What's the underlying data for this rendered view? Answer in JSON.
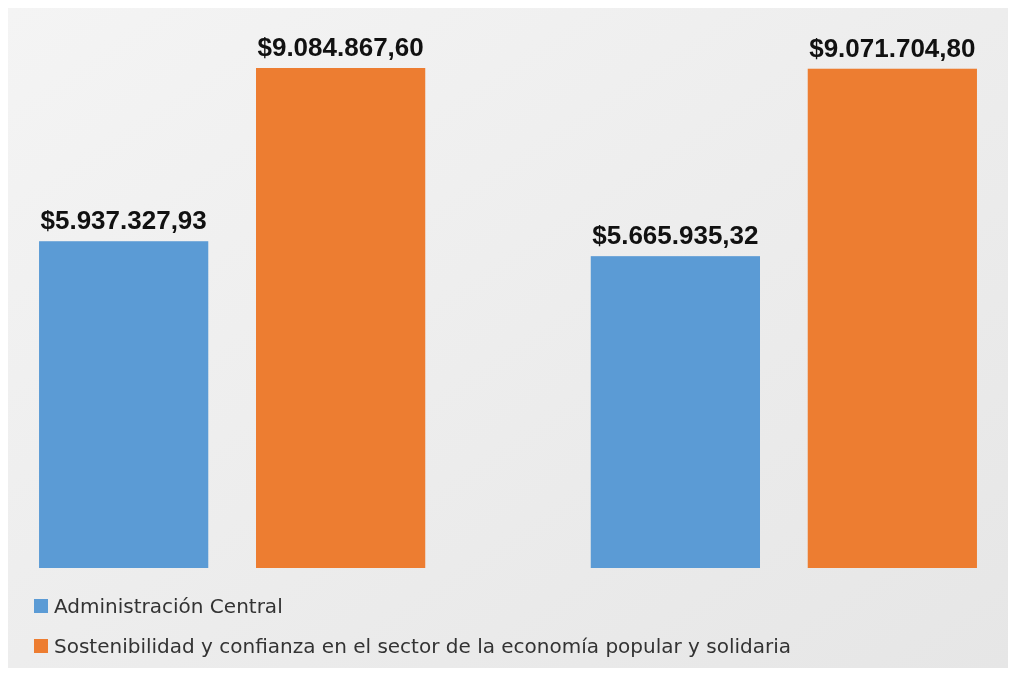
{
  "chart_data": {
    "type": "bar",
    "categories": [
      null,
      null
    ],
    "series": [
      {
        "name": "Administración Central",
        "color": "#5b9bd5",
        "values": [
          5937327.93,
          5665935.32
        ],
        "value_labels": [
          "$5.937.327,93",
          "$5.665.935,32"
        ]
      },
      {
        "name": "Sostenibilidad y confianza en el sector de la economía popular y solidaria",
        "color": "#ed7d31",
        "values": [
          9084867.6,
          9071704.8
        ],
        "value_labels": [
          "$9.084.867,60",
          "$9.071.704,80"
        ]
      }
    ],
    "legend": "bottom left",
    "grid": false
  }
}
